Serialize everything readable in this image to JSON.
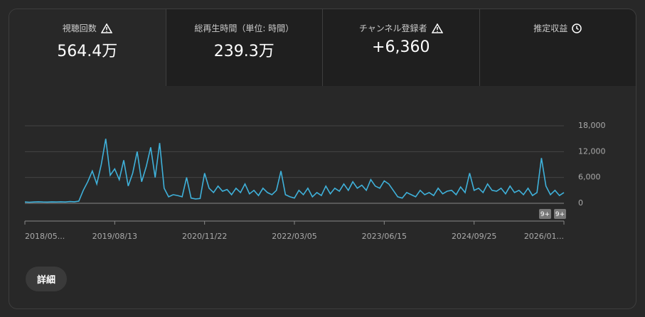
{
  "tabs": [
    {
      "label": "視聴回数",
      "value": "564.4万"
    },
    {
      "label": "総再生時間（単位: 時間）",
      "value": "239.3万"
    },
    {
      "label": "チャンネル登録者",
      "value": "+6,360"
    },
    {
      "label": "推定収益"
    }
  ],
  "chart_data": {
    "type": "line",
    "categories": [
      "2018/05...",
      null,
      null,
      null,
      null,
      null,
      null,
      null,
      null,
      null,
      null,
      null,
      null,
      null,
      null,
      null,
      null,
      null,
      null,
      null,
      "2019/08/13",
      null,
      null,
      null,
      null,
      null,
      null,
      null,
      null,
      null,
      null,
      null,
      null,
      null,
      null,
      null,
      null,
      null,
      null,
      null,
      "2020/11/22",
      null,
      null,
      null,
      null,
      null,
      null,
      null,
      null,
      null,
      null,
      null,
      null,
      null,
      null,
      null,
      null,
      null,
      null,
      null,
      "2022/03/05",
      null,
      null,
      null,
      null,
      null,
      null,
      null,
      null,
      null,
      null,
      null,
      null,
      null,
      null,
      null,
      null,
      null,
      null,
      null,
      "2023/06/15",
      null,
      null,
      null,
      null,
      null,
      null,
      null,
      null,
      null,
      null,
      null,
      null,
      null,
      null,
      null,
      null,
      null,
      null,
      null,
      "2024/09/25",
      null,
      null,
      null,
      null,
      null,
      null,
      null,
      null,
      null,
      null,
      null,
      null,
      null,
      null,
      null,
      null,
      null,
      null,
      null,
      "2026/01..."
    ],
    "series": [
      {
        "color": "#3fb1da",
        "values": [
          300,
          250,
          300,
          350,
          300,
          280,
          320,
          300,
          350,
          300,
          400,
          350,
          500,
          3000,
          5000,
          7500,
          4500,
          9000,
          15000,
          6500,
          8000,
          5500,
          10000,
          4000,
          7000,
          12000,
          5000,
          8500,
          13000,
          6000,
          14000,
          3500,
          1500,
          2000,
          1800,
          1500,
          6000,
          1200,
          1000,
          1100,
          7000,
          3500,
          2500,
          4000,
          2800,
          3200,
          2000,
          3500,
          2500,
          4500,
          2200,
          3000,
          1800,
          3500,
          2500,
          2000,
          3000,
          7500,
          2000,
          1500,
          1200,
          3000,
          2000,
          3500,
          1500,
          2500,
          1800,
          4000,
          2200,
          3500,
          2800,
          4500,
          3000,
          5000,
          3500,
          4200,
          3000,
          5500,
          4000,
          3500,
          5200,
          4500,
          3000,
          1500,
          1200,
          2500,
          2000,
          1500,
          3000,
          2000,
          2500,
          1800,
          3500,
          2200,
          2800,
          3000,
          2000,
          3800,
          2500,
          7000,
          3000,
          3500,
          2500,
          4500,
          3000,
          2800,
          3500,
          2200,
          4000,
          2500,
          3000,
          2000,
          3500,
          1800,
          2500,
          10500,
          4000,
          2000,
          3000,
          1800,
          2500
        ]
      }
    ],
    "ylim": [
      0,
      18000
    ],
    "yticks": [
      {
        "value": 0,
        "label": "0"
      },
      {
        "value": 6000,
        "label": "6,000"
      },
      {
        "value": 12000,
        "label": "12,000"
      },
      {
        "value": 18000,
        "label": "18,000"
      }
    ],
    "grid": true,
    "annotations": [
      "9+",
      "9+"
    ]
  },
  "button": "詳細"
}
